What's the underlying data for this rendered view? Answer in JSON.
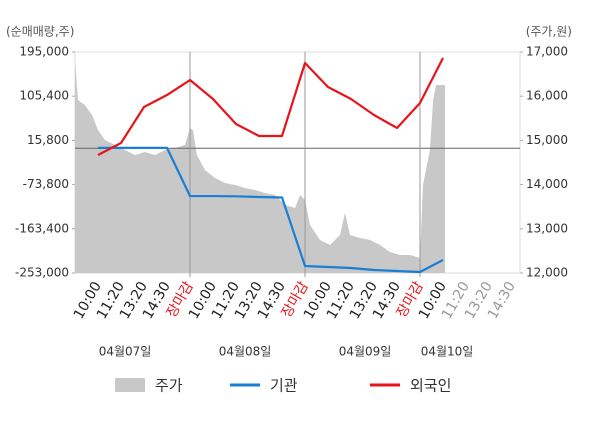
{
  "chart_data": {
    "type": "line",
    "ylabel": "(순매매량,주)",
    "y2label": "(주가,원)",
    "categories": [
      "10:00",
      "11:20",
      "13:20",
      "14:30",
      "장마감",
      "10:00",
      "11:20",
      "13:20",
      "14:30",
      "장마감",
      "10:00",
      "11:20",
      "13:20",
      "14:30",
      "장마감",
      "10:00",
      "11:20",
      "13:20",
      "14:30"
    ],
    "dates": [
      "04월07일",
      "04월08일",
      "04월09일",
      "04월10일"
    ],
    "ylim": [
      -253000,
      195000
    ],
    "yticks": [
      {
        "value": 195000,
        "label": "195,000"
      },
      {
        "value": 105400,
        "label": "105,400"
      },
      {
        "value": 15800,
        "label": "15,800"
      },
      {
        "value": -73800,
        "label": "-73,800"
      },
      {
        "value": -163400,
        "label": "-163,400"
      },
      {
        "value": -253000,
        "label": "-253,000"
      }
    ],
    "y2lim": [
      12000,
      17000
    ],
    "y2ticks": [
      {
        "value": 17000,
        "label": "17,000"
      },
      {
        "value": 16000,
        "label": "16,000"
      },
      {
        "value": 15000,
        "label": "15,000"
      },
      {
        "value": 14000,
        "label": "14,000"
      },
      {
        "value": 13000,
        "label": "13,000"
      },
      {
        "value": 12000,
        "label": "12,000"
      }
    ],
    "series": [
      {
        "name": "주가",
        "type": "area",
        "axis": "y2",
        "color": "#c8c8c8",
        "x": [
          -1,
          -0.87,
          -0.57,
          -0.26,
          0,
          0.3,
          0.74,
          1.17,
          1.61,
          2.04,
          2.48,
          2.91,
          3.35,
          3.78,
          4,
          4.13,
          4.3,
          4.65,
          5.09,
          5.52,
          5.96,
          6.39,
          6.83,
          7.26,
          7.7,
          8.13,
          8.57,
          8.78,
          9,
          9.22,
          9.65,
          10.09,
          10.52,
          10.74,
          10.96,
          11.39,
          11.83,
          12.26,
          12.7,
          13.13,
          13.57,
          14,
          14.13,
          14.43,
          14.57,
          14.7,
          15.09
        ],
        "values": [
          16819,
          15914,
          15801,
          15575,
          15235,
          15009,
          14896,
          14783,
          14670,
          14738,
          14670,
          14783,
          14828,
          14896,
          15281,
          15235,
          14670,
          14330,
          14149,
          14036,
          13991,
          13923,
          13878,
          13810,
          13765,
          13538,
          13471,
          13765,
          13652,
          13086,
          12747,
          12634,
          12860,
          13357,
          12860,
          12792,
          12747,
          12634,
          12475,
          12407,
          12407,
          12339,
          13991,
          14783,
          15914,
          16253,
          16253
        ]
      },
      {
        "name": "기관",
        "color": "#1a7fd4",
        "values": [
          600,
          600,
          600,
          600,
          -96900,
          -97000,
          -97500,
          -99000,
          -100000,
          -238800,
          -240800,
          -242800,
          -246900,
          -248900,
          -251000,
          -226600,
          null,
          null,
          null
        ]
      },
      {
        "name": "외국인",
        "color": "#e8141c",
        "values": [
          -13800,
          10500,
          83500,
          107800,
          138200,
          99700,
          49000,
          24700,
          24700,
          172700,
          124000,
          99700,
          67300,
          41000,
          91600,
          182800,
          null,
          null,
          null
        ]
      }
    ]
  }
}
